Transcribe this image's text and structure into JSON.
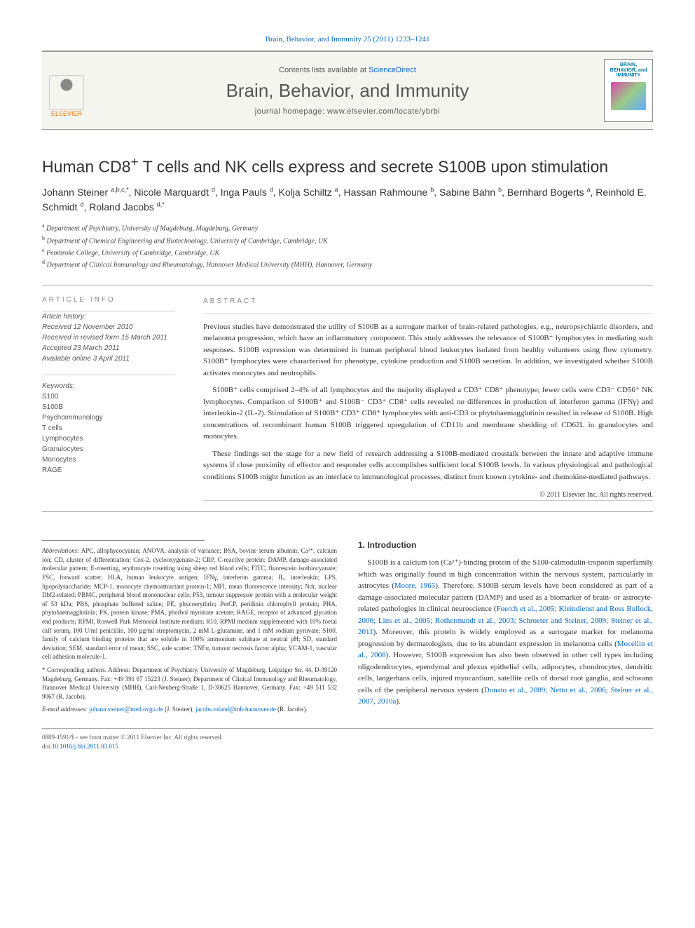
{
  "journal_ref": {
    "name": "Brain, Behavior, and Immunity",
    "vol": "25",
    "year": "2011",
    "pages": "1233–1241"
  },
  "header": {
    "contents_prefix": "Contents lists available at ",
    "contents_link": "ScienceDirect",
    "journal_title": "Brain, Behavior, and Immunity",
    "homepage_prefix": "journal homepage: ",
    "homepage_url": "www.elsevier.com/locate/ybrbi",
    "publisher": "ELSEVIER",
    "cover_title": "BRAIN, BEHAVIOR, and IMMUNITY"
  },
  "article": {
    "title_plain": "Human CD8",
    "title_sup": "+",
    "title_rest": " T cells and NK cells express and secrete S100B upon stimulation",
    "authors_html": "Johann Steiner <sup>a,b,c,*</sup>, Nicole Marquardt <sup>d</sup>, Inga Pauls <sup>d</sup>, Kolja Schiltz <sup>a</sup>, Hassan Rahmoune <sup>b</sup>, Sabine Bahn <sup>b</sup>, Bernhard Bogerts <sup>a</sup>, Reinhold E. Schmidt <sup>d</sup>, Roland Jacobs <sup>d,*</sup>",
    "affiliations": [
      {
        "sup": "a",
        "text": "Department of Psychiatry, University of Magdeburg, Magdeburg, Germany"
      },
      {
        "sup": "b",
        "text": "Department of Chemical Engineering and Biotechnology, University of Cambridge, Cambridge, UK"
      },
      {
        "sup": "c",
        "text": "Pembroke College, University of Cambridge, Cambridge, UK"
      },
      {
        "sup": "d",
        "text": "Department of Clinical Immunology and Rheumatology, Hannover Medical University (MHH), Hannover, Germany"
      }
    ]
  },
  "article_info": {
    "heading": "ARTICLE INFO",
    "history_title": "Article history:",
    "history": [
      "Received 12 November 2010",
      "Received in revised form 15 March 2011",
      "Accepted 23 March 2011",
      "Available online 3 April 2011"
    ],
    "keywords_title": "Keywords:",
    "keywords": [
      "S100",
      "S100B",
      "Psychoimmunology",
      "T cells",
      "Lymphocytes",
      "Granulocytes",
      "Monocytes",
      "RAGE"
    ]
  },
  "abstract": {
    "heading": "ABSTRACT",
    "paras": [
      "Previous studies have demonstrated the utility of S100B as a surrogate marker of brain-related pathologies, e.g., neuropsychiatric disorders, and melanoma progression, which have an inflammatory component. This study addresses the relevance of S100B⁺ lymphocytes in mediating such responses. S100B expression was determined in human peripheral blood leukocytes isolated from healthy volunteers using flow cytometry. S100B⁺ lymphocytes were characterised for phenotype, cytokine production and S100B secretion. In addition, we investigated whether S100B activates monocytes and neutrophils.",
      "S100B⁺ cells comprised 2–4% of all lymphocytes and the majority displayed a CD3⁺ CD8⁺ phenotype; fewer cells were CD3⁻ CD56⁺ NK lymphocytes. Comparison of S100B⁺ and S100B⁻ CD3⁺ CD8⁺ cells revealed no differences in production of interferon gamma (IFNγ) and interleukin-2 (IL-2). Stimulation of S100B⁺ CD3⁺ CD8⁺ lymphocytes with anti-CD3 or phytohaemagglutinin resulted in release of S100B. High concentrations of recombinant human S100B triggered upregulation of CD11b and membrane shedding of CD62L in granulocytes and monocytes.",
      "These findings set the stage for a new field of research addressing a S100B-mediated crosstalk between the innate and adaptive immune systems if close proximity of effector and responder cells accomplishes sufficient local S100B levels. In various physiological and pathological conditions S100B might function as an interface to immunological processes, distinct from known cytokine- and chemokine-mediated pathways."
    ],
    "copyright": "© 2011 Elsevier Inc. All rights reserved."
  },
  "left_column": {
    "abbrev_lead": "Abbreviations:",
    "abbrev_text": " APC, allophycocyanin; ANOVA, analysis of variance; BSA, bovine serum albumin; Ca²⁺, calcium ion; CD, cluster of differentiation; Cox-2, cyclooxygenase-2; CRP, C-reactive protein; DAMP, damage-associated molecular pattern; E-rosetting, erythrocyte rosetting using sheep red blood cells; FITC, fluorescein isothiocyanate; FSC, forward scatter; HLA, human leukocyte antigen; IFNγ, interferon gamma; IL, interleukin; LPS, lipopolysaccharide; MCP-1, monocyte chemoattractant protein-1; MFI, mean fluorescence intensity; Ndr, nuclear Dbf2-related; PBMC, peripheral blood mononuclear cells; P53, tumour suppressor protein with a molecular weight of 53 kDa; PBS, phosphate buffered saline; PE, phycoerythrin; PerCP, peridinin chlorophyll protein; PHA, phytohaemagglutinin; PK, protein kinase; PMA, phorbol myristate acetate; RAGE, receptor of advanced glycation end products; RPMI, Roswell Park Memorial Institute medium; R10, RPMI medium supplemented with 10% foetal calf serum, 100 U/ml penicillin, 100 µg/ml streptomycin, 2 mM L-glutamine, and 1 mM sodium pyruvate; S100, family of calcium binding proteins that are soluble in 100% ammonium sulphate at neutral pH; SD, standard deviation; SEM, standard error of mean; SSC, side scatter; TNFα, tumour necrosis factor alpha; VCAM-1, vascular cell adhesion molecule-1.",
    "corr_lead": "* Corresponding authors.",
    "corr_text": " Address: Department of Psychiatry, University of Magdeburg, Leipziger Str. 44, D-39120 Magdeburg, Germany. Fax: +49 391 67 15223 (J. Steiner); Department of Clinical Immunology and Rheumatology, Hannover Medical University (MHH), Carl-Neuberg-Straße 1, D-30625 Hannover, Germany. Fax: +49 511 532 9067 (R. Jacobs).",
    "email_lead": "E-mail addresses:",
    "email_1": "johann.steiner@med.ovgu.de",
    "email_1_who": " (J. Steiner), ",
    "email_2": "jacobs.roland@mh-hannover.de",
    "email_2_who": " (R. Jacobs)."
  },
  "intro": {
    "heading": "1. Introduction",
    "para_plain": "S100B is a calcium ion (Ca²⁺)-binding protein of the S100-calmodulin-troponin superfamily which was originally found in high concentration within the nervous system, particularly in astrocytes (",
    "ref_moore": "Moore, 1965",
    "para_mid1": "). Therefore, S100B serum levels have been considered as part of a damage-associated molecular pattern (DAMP) and used as a biomarker of brain- or astrocyte-related pathologies in clinical neuroscience (",
    "ref_list1": "Foerch et al., 2005; Kleindienst and Ross Bullock, 2006; Lins et al., 2005; Rothermundt et al., 2003; Schroeter and Steiner, 2009; Steiner et al., 2011",
    "para_mid2": "). Moreover, this protein is widely employed as a surrogate marker for melanoma progression by dermatologists, due to its abundant expression in melanoma cells (",
    "ref_mocellin": "Mocellin et al., 2008",
    "para_mid3": "). However, S100B expression has also been observed in other cell types including oligodendrocytes, ependymal and plexus epithelial cells, adipocytes, chondrocytes, dendritic cells, langerhans cells, injured myocardium, satellite cells of dorsal root ganglia, and schwann cells of the peripheral nervous system (",
    "ref_list2": "Donato et al., 2009; Netto et al., 2006; Steiner et al., 2007, 2010a",
    "para_end": ")."
  },
  "footer": {
    "issn_line": "0889-1591/$ - see front matter © 2011 Elsevier Inc. All rights reserved.",
    "doi_prefix": "doi:",
    "doi": "10.1016/j.bbi.2011.03.015"
  },
  "colors": {
    "link": "#0066cc",
    "text": "#333333",
    "muted": "#888888",
    "rule": "#aaaaaa",
    "elsevier_orange": "#e67817",
    "band_bg": "#f5f5f0"
  }
}
